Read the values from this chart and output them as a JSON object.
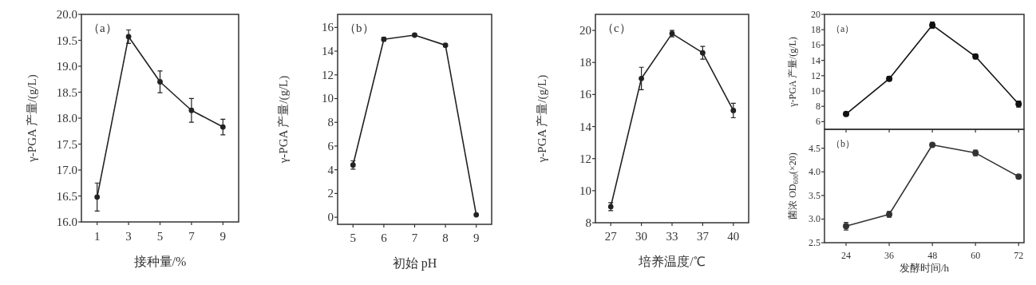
{
  "chart_data": [
    {
      "type": "line",
      "categories": [
        "1",
        "3",
        "5",
        "7",
        "9"
      ],
      "values": [
        16.48,
        19.57,
        18.7,
        18.15,
        17.83
      ],
      "errors": [
        0.27,
        0.13,
        0.21,
        0.23,
        0.15
      ],
      "color": "#222222",
      "marker": "circle",
      "ylim": [
        16,
        20
      ],
      "yticks": [
        {
          "value": 16,
          "label": "16.0"
        },
        {
          "value": 16.5,
          "label": "16.5"
        },
        {
          "value": 17,
          "label": "17.0"
        },
        {
          "value": 17.5,
          "label": "17.5"
        },
        {
          "value": 18,
          "label": "18.0"
        },
        {
          "value": 18.5,
          "label": "18.5"
        },
        {
          "value": 19,
          "label": "19.0"
        },
        {
          "value": 19.5,
          "label": "19.5"
        },
        {
          "value": 20,
          "label": "20.0"
        }
      ],
      "xlabel": "接种量/%",
      "ylabel": "γ-PGA 产量/(g/L)",
      "annotations": [
        "（a）"
      ]
    },
    {
      "type": "line",
      "categories": [
        "5",
        "6",
        "7",
        "8",
        "9"
      ],
      "values": [
        4.4,
        15.0,
        15.35,
        14.5,
        0.2
      ],
      "errors": [
        0.35,
        0.15,
        0.1,
        0.1,
        null
      ],
      "color": "#222222",
      "marker": "circle",
      "ylim": [
        -0.6,
        17.1
      ],
      "yticks": [
        0,
        2,
        4,
        6,
        8,
        10,
        12,
        14,
        16
      ],
      "xlabel": "初始 pH",
      "ylabel": "γ-PGA 产量/(g/L)",
      "annotations": [
        "（b）"
      ]
    },
    {
      "type": "line",
      "categories": [
        "27",
        "30",
        "33",
        "37",
        "40"
      ],
      "values": [
        9.0,
        17.0,
        19.8,
        18.6,
        15.0
      ],
      "errors": [
        0.25,
        0.7,
        0.2,
        0.4,
        0.45
      ],
      "color": "#222222",
      "marker": "circle",
      "ylim": [
        8,
        21
      ],
      "yticks": [
        8,
        10,
        12,
        14,
        16,
        18,
        20
      ],
      "xlabel": "培养温度/℃",
      "ylabel": "γ-PGA 产量/(g/L)",
      "annotations": [
        "（c）"
      ]
    },
    {
      "type": "line",
      "x": [
        24,
        36,
        48,
        60,
        72
      ],
      "values": [
        7.0,
        11.6,
        18.6,
        14.5,
        8.3
      ],
      "errors": [
        null,
        0.3,
        0.4,
        0.3,
        0.4
      ],
      "color": "#111111",
      "marker": "circle",
      "xlim": [
        18,
        73.5
      ],
      "xticks": [
        24,
        36,
        48,
        60,
        72
      ],
      "ylim": [
        5,
        20
      ],
      "yticks": [
        6,
        8,
        10,
        12,
        14,
        16,
        18,
        20
      ],
      "tick_labels": "y",
      "ylabel": "γ-PGA 产量/(g/L)",
      "annotations": [
        "（a）"
      ]
    },
    {
      "type": "line",
      "x": [
        24,
        36,
        48,
        60,
        72
      ],
      "values": [
        2.85,
        3.1,
        4.57,
        4.4,
        3.9
      ],
      "errors": [
        0.08,
        0.06,
        0.03,
        0.06,
        0.04
      ],
      "color": "#333333",
      "marker": "circle",
      "xlim": [
        18,
        73.5
      ],
      "xticks": [
        24,
        36,
        48,
        60,
        72
      ],
      "ylim": [
        2.5,
        4.9
      ],
      "yticks": [
        {
          "value": 2.5,
          "label": "2.5"
        },
        {
          "value": 3,
          "label": "3.0"
        },
        {
          "value": 3.5,
          "label": "3.5"
        },
        {
          "value": 4,
          "label": "4.0"
        },
        {
          "value": 4.5,
          "label": "4.5"
        }
      ],
      "xlabel": "发酵时间/h",
      "ylabel": "菌浓 OD$_{600}$(×20)",
      "annotations": [
        "（b）"
      ]
    }
  ]
}
